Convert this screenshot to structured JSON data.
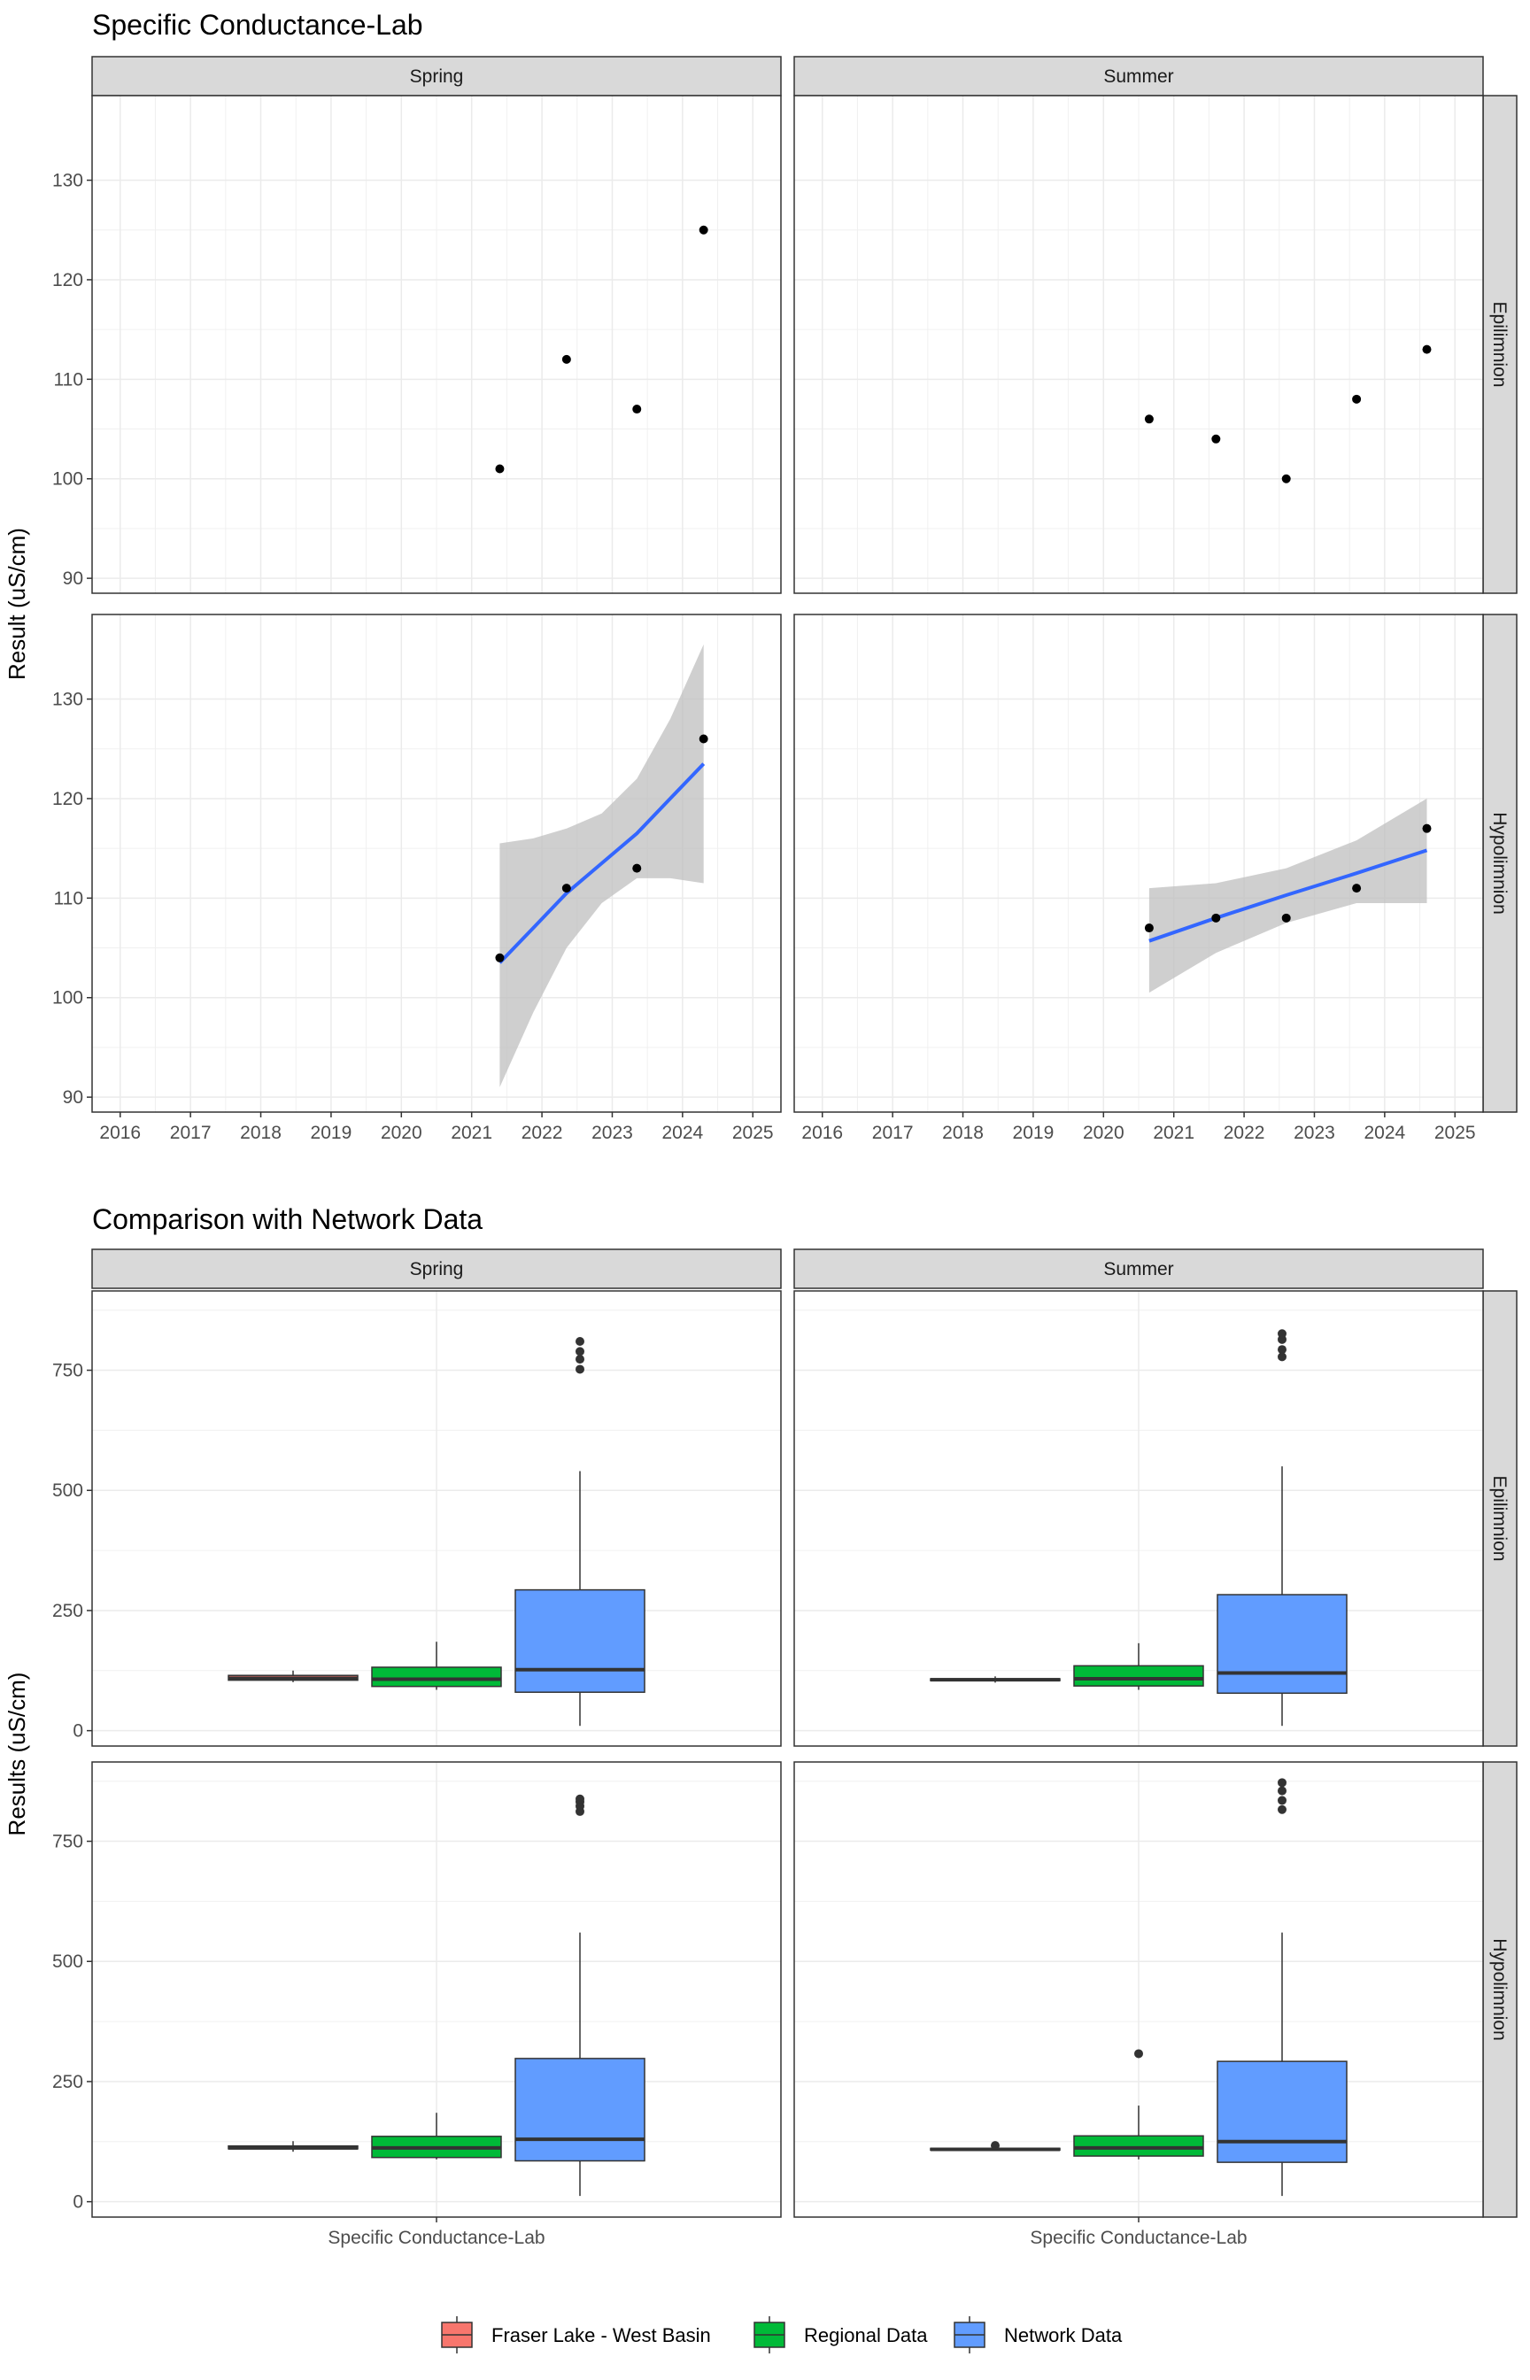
{
  "chart_data": [
    {
      "type": "scatter",
      "title": "Specific Conductance-Lab",
      "ylabel": "Result (uS/cm)",
      "xlabel": "",
      "xlim": [
        2015.6,
        2025.4
      ],
      "ylim": [
        88.5,
        138.5
      ],
      "x_ticks": [
        "2016",
        "2017",
        "2018",
        "2019",
        "2020",
        "2021",
        "2022",
        "2023",
        "2024",
        "2025"
      ],
      "y_ticks": [
        "90",
        "100",
        "110",
        "120",
        "130"
      ],
      "columns": [
        "Spring",
        "Summer"
      ],
      "rows": [
        "Epilimnion",
        "Hypolimnion"
      ],
      "grid": true,
      "trend_color": "#3366FF",
      "ribbon_color": "#BFBFBF",
      "panels": [
        {
          "row": "Epilimnion",
          "column": "Spring",
          "points": [
            [
              2021.4,
              101
            ],
            [
              2022.35,
              112
            ],
            [
              2023.35,
              107
            ],
            [
              2024.3,
              125
            ]
          ],
          "trend": null
        },
        {
          "row": "Epilimnion",
          "column": "Summer",
          "points": [
            [
              2020.65,
              106
            ],
            [
              2021.6,
              104
            ],
            [
              2022.6,
              100
            ],
            [
              2023.6,
              108
            ],
            [
              2024.6,
              113
            ]
          ],
          "trend": null
        },
        {
          "row": "Hypolimnion",
          "column": "Spring",
          "points": [
            [
              2021.4,
              104
            ],
            [
              2022.35,
              111
            ],
            [
              2023.35,
              113
            ],
            [
              2024.3,
              126
            ]
          ],
          "trend": {
            "x": [
              2021.4,
              2021.875,
              2022.35,
              2022.85,
              2023.35,
              2023.825,
              2024.3
            ],
            "fit": [
              103.5,
              107.0,
              110.5,
              113.5,
              116.5,
              120.0,
              123.5
            ],
            "lower": [
              91.0,
              98.5,
              105.0,
              109.5,
              112.0,
              112.0,
              111.5
            ],
            "upper": [
              115.5,
              116.0,
              117.0,
              118.5,
              122.0,
              128.0,
              135.5
            ]
          }
        },
        {
          "row": "Hypolimnion",
          "column": "Summer",
          "points": [
            [
              2020.65,
              107
            ],
            [
              2021.6,
              108
            ],
            [
              2022.6,
              108
            ],
            [
              2023.6,
              111
            ],
            [
              2024.6,
              117
            ]
          ],
          "trend": {
            "x": [
              2020.65,
              2021.6,
              2022.6,
              2023.6,
              2024.6
            ],
            "fit": [
              105.7,
              108.0,
              110.3,
              112.5,
              114.8
            ],
            "lower": [
              100.5,
              104.5,
              107.5,
              109.5,
              109.5
            ],
            "upper": [
              111.0,
              111.5,
              113.0,
              115.8,
              120.0
            ]
          }
        }
      ]
    },
    {
      "type": "box",
      "title": "Comparison with Network Data",
      "ylabel": "Results (uS/cm)",
      "x_category": "Specific Conductance-Lab",
      "ylim": [
        -32,
        915
      ],
      "y_ticks": [
        "0",
        "250",
        "500",
        "750"
      ],
      "columns": [
        "Spring",
        "Summer"
      ],
      "rows": [
        "Epilimnion",
        "Hypolimnion"
      ],
      "groups": [
        "Fraser Lake - West Basin",
        "Regional Data",
        "Network Data"
      ],
      "colors": [
        "#F8766D",
        "#00BA38",
        "#619CFF"
      ],
      "legend_position": "bottom",
      "panels": [
        {
          "row": "Epilimnion",
          "column": "Spring",
          "boxes": [
            {
              "min": 101,
              "q1": 105,
              "median": 109,
              "q3": 115,
              "max": 125,
              "outliers": []
            },
            {
              "min": 85,
              "q1": 92,
              "median": 107,
              "q3": 132,
              "max": 185,
              "outliers": []
            },
            {
              "min": 10,
              "q1": 80,
              "median": 127,
              "q3": 293,
              "max": 540,
              "outliers": [
                752,
                773,
                789,
                810
              ]
            }
          ]
        },
        {
          "row": "Epilimnion",
          "column": "Summer",
          "boxes": [
            {
              "min": 100,
              "q1": 104,
              "median": 106,
              "q3": 108,
              "max": 113,
              "outliers": []
            },
            {
              "min": 85,
              "q1": 93,
              "median": 108,
              "q3": 135,
              "max": 182,
              "outliers": []
            },
            {
              "min": 10,
              "q1": 78,
              "median": 120,
              "q3": 283,
              "max": 550,
              "outliers": [
                778,
                793,
                814,
                826
              ]
            }
          ]
        },
        {
          "row": "Hypolimnion",
          "column": "Spring",
          "boxes": [
            {
              "min": 104,
              "q1": 110,
              "median": 112,
              "q3": 116,
              "max": 126,
              "outliers": []
            },
            {
              "min": 88,
              "q1": 92,
              "median": 112,
              "q3": 136,
              "max": 185,
              "outliers": []
            },
            {
              "min": 12,
              "q1": 85,
              "median": 130,
              "q3": 298,
              "max": 560,
              "outliers": [
                812,
                823,
                832,
                838
              ]
            }
          ]
        },
        {
          "row": "Hypolimnion",
          "column": "Summer",
          "boxes": [
            {
              "min": 107,
              "q1": 108,
              "median": 109,
              "q3": 111,
              "max": 111,
              "outliers": [
                117
              ]
            },
            {
              "min": 88,
              "q1": 95,
              "median": 112,
              "q3": 137,
              "max": 200,
              "outliers": [
                308
              ]
            },
            {
              "min": 12,
              "q1": 82,
              "median": 125,
              "q3": 292,
              "max": 560,
              "outliers": [
                816,
                835,
                855,
                872
              ]
            }
          ]
        }
      ]
    }
  ]
}
